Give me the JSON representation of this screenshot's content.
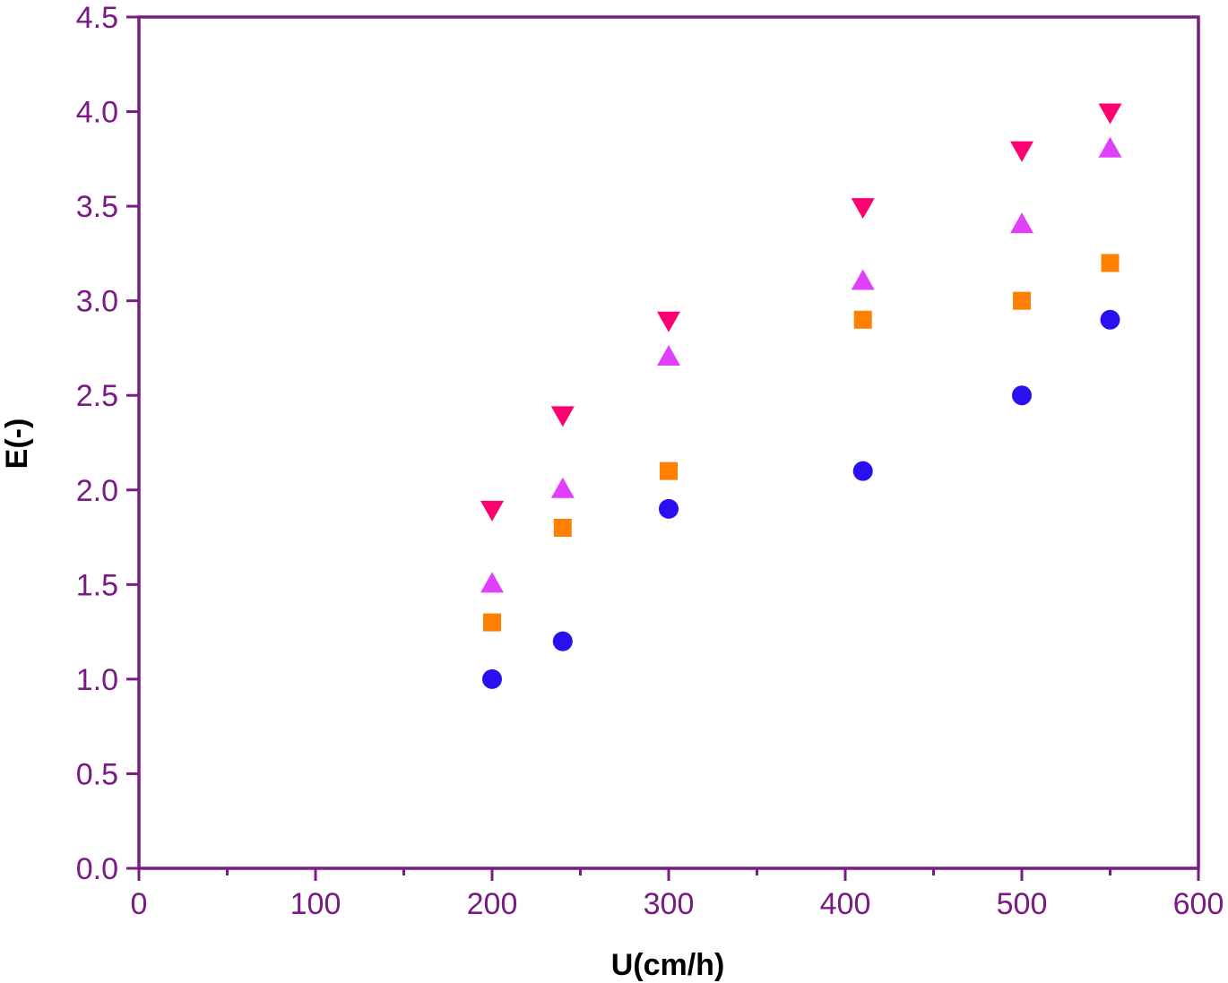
{
  "chart_data": {
    "type": "scatter",
    "title": "",
    "xlabel": "U(cm/h)",
    "ylabel": "E(-)",
    "xlim": [
      0,
      600
    ],
    "ylim": [
      0,
      4.5
    ],
    "xticks": [
      0,
      100,
      200,
      300,
      400,
      500,
      600
    ],
    "xtick_labels": [
      "0",
      "100",
      "200",
      "300",
      "400",
      "500",
      "600"
    ],
    "yticks": [
      0,
      0.5,
      1.0,
      1.5,
      2.0,
      2.5,
      3.0,
      3.5,
      4.0,
      4.5
    ],
    "ytick_labels": [
      "0.0",
      "0.5",
      "1.0",
      "1.5",
      "2.0",
      "2.5",
      "3.0",
      "3.5",
      "4.0",
      "4.5"
    ],
    "grid": false,
    "legend": "none",
    "axis_color": "#7a1a85",
    "series": [
      {
        "marker": "circle",
        "color": "#2a0ff0",
        "x": [
          200,
          240,
          300,
          410,
          500,
          550
        ],
        "y": [
          1.0,
          1.2,
          1.9,
          2.1,
          2.5,
          2.9
        ]
      },
      {
        "marker": "square",
        "color": "#ff8000",
        "x": [
          200,
          240,
          300,
          410,
          500,
          550
        ],
        "y": [
          1.3,
          1.8,
          2.1,
          2.9,
          3.0,
          3.2
        ]
      },
      {
        "marker": "triangle-up",
        "color": "#e040fb",
        "x": [
          200,
          240,
          300,
          410,
          500,
          550
        ],
        "y": [
          1.5,
          2.0,
          2.7,
          3.1,
          3.4,
          3.8
        ]
      },
      {
        "marker": "triangle-down",
        "color": "#ff0070",
        "x": [
          200,
          240,
          300,
          410,
          500,
          550
        ],
        "y": [
          1.9,
          2.4,
          2.9,
          3.5,
          3.8,
          4.0
        ]
      }
    ]
  }
}
